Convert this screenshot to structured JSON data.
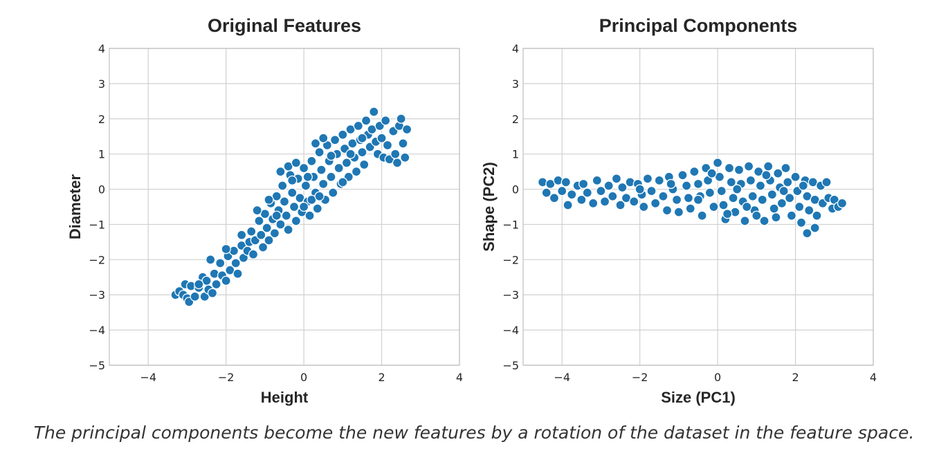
{
  "caption": "The principal components become the new features by a rotation of the dataset in the feature space.",
  "chart_data": [
    {
      "type": "scatter",
      "title": "Original Features",
      "xlabel": "Height",
      "ylabel": "Diameter",
      "xlim": [
        -5,
        4
      ],
      "ylim": [
        -5,
        4
      ],
      "xticks": [
        -4,
        -2,
        0,
        2,
        4
      ],
      "yticks": [
        -5,
        -4,
        -3,
        -2,
        -1,
        0,
        1,
        2,
        3,
        4
      ],
      "grid": true,
      "color": "#1f77b4",
      "points": [
        [
          -3.3,
          -3.0
        ],
        [
          -3.2,
          -2.9
        ],
        [
          -3.1,
          -3.0
        ],
        [
          -3.0,
          -3.1
        ],
        [
          -2.95,
          -3.2
        ],
        [
          -3.05,
          -2.7
        ],
        [
          -2.9,
          -2.75
        ],
        [
          -2.8,
          -3.05
        ],
        [
          -2.7,
          -2.8
        ],
        [
          -2.6,
          -2.5
        ],
        [
          -2.55,
          -3.05
        ],
        [
          -2.5,
          -2.6
        ],
        [
          -2.45,
          -2.85
        ],
        [
          -2.35,
          -2.95
        ],
        [
          -2.4,
          -2.0
        ],
        [
          -2.3,
          -2.4
        ],
        [
          -2.25,
          -2.7
        ],
        [
          -2.15,
          -2.1
        ],
        [
          -2.1,
          -2.45
        ],
        [
          -2.0,
          -2.6
        ],
        [
          -1.95,
          -1.9
        ],
        [
          -1.9,
          -2.3
        ],
        [
          -1.8,
          -1.75
        ],
        [
          -1.75,
          -2.1
        ],
        [
          -1.7,
          -2.4
        ],
        [
          -1.6,
          -1.6
        ],
        [
          -1.55,
          -1.95
        ],
        [
          -1.45,
          -1.75
        ],
        [
          -1.4,
          -1.5
        ],
        [
          -1.35,
          -1.2
        ],
        [
          -1.3,
          -1.85
        ],
        [
          -1.25,
          -1.45
        ],
        [
          -1.15,
          -0.9
        ],
        [
          -1.1,
          -1.3
        ],
        [
          -1.05,
          -1.65
        ],
        [
          -1.0,
          -0.7
        ],
        [
          -0.95,
          -1.1
        ],
        [
          -0.9,
          -1.45
        ],
        [
          -0.85,
          -0.4
        ],
        [
          -0.8,
          -0.85
        ],
        [
          -0.75,
          -1.25
        ],
        [
          -0.7,
          -0.2
        ],
        [
          -0.65,
          -0.6
        ],
        [
          -0.6,
          -1.0
        ],
        [
          -0.55,
          0.1
        ],
        [
          -0.5,
          -0.35
        ],
        [
          -0.45,
          -0.75
        ],
        [
          -0.4,
          -1.15
        ],
        [
          -0.35,
          0.4
        ],
        [
          -0.3,
          -0.1
        ],
        [
          -0.25,
          -0.5
        ],
        [
          -0.2,
          -0.9
        ],
        [
          -0.15,
          0.3
        ],
        [
          -0.1,
          -0.25
        ],
        [
          -0.05,
          -0.65
        ],
        [
          0.0,
          0.6
        ],
        [
          0.05,
          0.1
        ],
        [
          0.1,
          -0.35
        ],
        [
          0.15,
          -0.75
        ],
        [
          0.2,
          0.8
        ],
        [
          0.25,
          0.35
        ],
        [
          0.3,
          -0.1
        ],
        [
          0.35,
          -0.55
        ],
        [
          0.4,
          1.05
        ],
        [
          0.45,
          0.55
        ],
        [
          0.5,
          0.15
        ],
        [
          0.55,
          -0.3
        ],
        [
          0.6,
          1.25
        ],
        [
          0.65,
          0.8
        ],
        [
          0.7,
          0.35
        ],
        [
          0.75,
          -0.1
        ],
        [
          0.8,
          1.4
        ],
        [
          0.85,
          1.0
        ],
        [
          0.9,
          0.6
        ],
        [
          0.95,
          0.15
        ],
        [
          1.0,
          1.55
        ],
        [
          1.05,
          1.15
        ],
        [
          1.1,
          0.75
        ],
        [
          1.15,
          0.35
        ],
        [
          1.2,
          1.7
        ],
        [
          1.25,
          1.3
        ],
        [
          1.3,
          0.9
        ],
        [
          1.35,
          0.5
        ],
        [
          1.4,
          1.8
        ],
        [
          1.45,
          1.4
        ],
        [
          1.5,
          1.05
        ],
        [
          1.55,
          0.7
        ],
        [
          1.6,
          1.95
        ],
        [
          1.65,
          1.55
        ],
        [
          1.7,
          1.2
        ],
        [
          1.8,
          2.2
        ],
        [
          1.75,
          1.7
        ],
        [
          1.85,
          1.35
        ],
        [
          1.9,
          1.0
        ],
        [
          1.95,
          1.8
        ],
        [
          2.0,
          1.45
        ],
        [
          2.05,
          0.9
        ],
        [
          2.1,
          1.95
        ],
        [
          2.15,
          1.25
        ],
        [
          2.2,
          0.85
        ],
        [
          2.3,
          1.65
        ],
        [
          2.35,
          1.0
        ],
        [
          2.4,
          0.75
        ],
        [
          2.45,
          1.8
        ],
        [
          2.5,
          2.0
        ],
        [
          2.55,
          1.3
        ],
        [
          2.6,
          0.9
        ],
        [
          2.65,
          1.7
        ],
        [
          -0.6,
          0.5
        ],
        [
          -0.4,
          0.65
        ],
        [
          -0.2,
          0.75
        ],
        [
          0.0,
          -0.5
        ],
        [
          0.3,
          1.3
        ],
        [
          0.5,
          1.45
        ],
        [
          1.2,
          1.0
        ],
        [
          0.2,
          -0.3
        ],
        [
          -0.9,
          -0.3
        ],
        [
          -1.2,
          -0.6
        ],
        [
          -0.7,
          -0.75
        ],
        [
          0.4,
          -0.2
        ],
        [
          0.7,
          0.95
        ],
        [
          1.5,
          1.45
        ],
        [
          1.0,
          0.2
        ],
        [
          -1.6,
          -1.3
        ],
        [
          -2.0,
          -1.7
        ],
        [
          -2.7,
          -2.7
        ],
        [
          -0.3,
          0.25
        ],
        [
          0.1,
          0.35
        ]
      ]
    },
    {
      "type": "scatter",
      "title": "Principal Components",
      "xlabel": "Size (PC1)",
      "ylabel": "Shape (PC2)",
      "xlim": [
        -5,
        4
      ],
      "ylim": [
        -5,
        4
      ],
      "xticks": [
        -4,
        -2,
        0,
        2,
        4
      ],
      "yticks": [
        -5,
        -4,
        -3,
        -2,
        -1,
        0,
        1,
        2,
        3,
        4
      ],
      "grid": true,
      "color": "#1f77b4",
      "points": [
        [
          -4.5,
          0.2
        ],
        [
          -4.4,
          -0.1
        ],
        [
          -4.3,
          0.15
        ],
        [
          -4.2,
          -0.25
        ],
        [
          -4.1,
          0.25
        ],
        [
          -4.0,
          -0.05
        ],
        [
          -3.9,
          0.2
        ],
        [
          -3.85,
          -0.45
        ],
        [
          -3.75,
          -0.15
        ],
        [
          -3.6,
          0.1
        ],
        [
          -3.5,
          -0.3
        ],
        [
          -3.45,
          0.15
        ],
        [
          -3.35,
          -0.1
        ],
        [
          -3.2,
          -0.4
        ],
        [
          -3.1,
          0.25
        ],
        [
          -3.0,
          -0.05
        ],
        [
          -2.9,
          -0.35
        ],
        [
          -2.8,
          0.1
        ],
        [
          -2.7,
          -0.2
        ],
        [
          -2.6,
          0.3
        ],
        [
          -2.5,
          -0.45
        ],
        [
          -2.45,
          0.05
        ],
        [
          -2.35,
          -0.25
        ],
        [
          -2.25,
          0.2
        ],
        [
          -2.15,
          -0.35
        ],
        [
          -2.05,
          0.15
        ],
        [
          -1.95,
          -0.15
        ],
        [
          -1.9,
          -0.5
        ],
        [
          -1.8,
          0.3
        ],
        [
          -1.7,
          -0.05
        ],
        [
          -1.6,
          -0.4
        ],
        [
          -1.5,
          0.25
        ],
        [
          -1.4,
          -0.2
        ],
        [
          -1.3,
          -0.6
        ],
        [
          -1.25,
          0.35
        ],
        [
          -1.15,
          0.0
        ],
        [
          -1.05,
          -0.3
        ],
        [
          -1.0,
          -0.65
        ],
        [
          -0.9,
          0.4
        ],
        [
          -0.8,
          0.1
        ],
        [
          -0.75,
          -0.25
        ],
        [
          -0.7,
          -0.55
        ],
        [
          -0.6,
          0.5
        ],
        [
          -0.5,
          0.15
        ],
        [
          -0.45,
          -0.2
        ],
        [
          -0.4,
          -0.75
        ],
        [
          -0.3,
          0.6
        ],
        [
          -0.25,
          0.25
        ],
        [
          -0.2,
          -0.1
        ],
        [
          -0.1,
          -0.5
        ],
        [
          0.0,
          0.75
        ],
        [
          0.05,
          0.35
        ],
        [
          0.1,
          -0.05
        ],
        [
          0.15,
          -0.45
        ],
        [
          0.2,
          -0.85
        ],
        [
          0.3,
          0.6
        ],
        [
          0.35,
          0.2
        ],
        [
          0.4,
          -0.25
        ],
        [
          0.45,
          -0.65
        ],
        [
          0.55,
          0.55
        ],
        [
          0.6,
          0.15
        ],
        [
          0.65,
          -0.35
        ],
        [
          0.7,
          -0.9
        ],
        [
          0.8,
          0.65
        ],
        [
          0.85,
          0.25
        ],
        [
          0.9,
          -0.2
        ],
        [
          0.95,
          -0.6
        ],
        [
          1.05,
          0.5
        ],
        [
          1.1,
          0.1
        ],
        [
          1.15,
          -0.3
        ],
        [
          1.2,
          -0.9
        ],
        [
          1.3,
          0.65
        ],
        [
          1.35,
          0.25
        ],
        [
          1.4,
          -0.15
        ],
        [
          1.45,
          -0.55
        ],
        [
          1.55,
          0.45
        ],
        [
          1.6,
          0.05
        ],
        [
          1.65,
          -0.4
        ],
        [
          1.75,
          0.6
        ],
        [
          1.8,
          0.2
        ],
        [
          1.85,
          -0.25
        ],
        [
          1.9,
          -0.75
        ],
        [
          2.0,
          0.35
        ],
        [
          2.05,
          -0.05
        ],
        [
          2.1,
          -0.5
        ],
        [
          2.15,
          -0.95
        ],
        [
          2.25,
          0.25
        ],
        [
          2.3,
          -0.2
        ],
        [
          2.3,
          -1.25
        ],
        [
          2.35,
          -0.6
        ],
        [
          2.45,
          0.2
        ],
        [
          2.5,
          -0.3
        ],
        [
          2.5,
          -1.1
        ],
        [
          2.55,
          -0.75
        ],
        [
          2.65,
          0.1
        ],
        [
          2.7,
          -0.4
        ],
        [
          2.8,
          0.2
        ],
        [
          2.85,
          -0.25
        ],
        [
          2.95,
          -0.55
        ],
        [
          3.0,
          -0.3
        ],
        [
          3.1,
          -0.5
        ],
        [
          3.2,
          -0.4
        ],
        [
          -0.5,
          -0.3
        ],
        [
          0.5,
          0.0
        ],
        [
          1.0,
          -0.75
        ],
        [
          1.7,
          -0.05
        ],
        [
          -1.2,
          0.15
        ],
        [
          -2.0,
          0.0
        ],
        [
          2.2,
          0.1
        ],
        [
          0.25,
          -0.7
        ],
        [
          1.25,
          0.4
        ],
        [
          -0.15,
          0.45
        ],
        [
          0.75,
          -0.5
        ],
        [
          1.5,
          -0.8
        ]
      ]
    }
  ]
}
